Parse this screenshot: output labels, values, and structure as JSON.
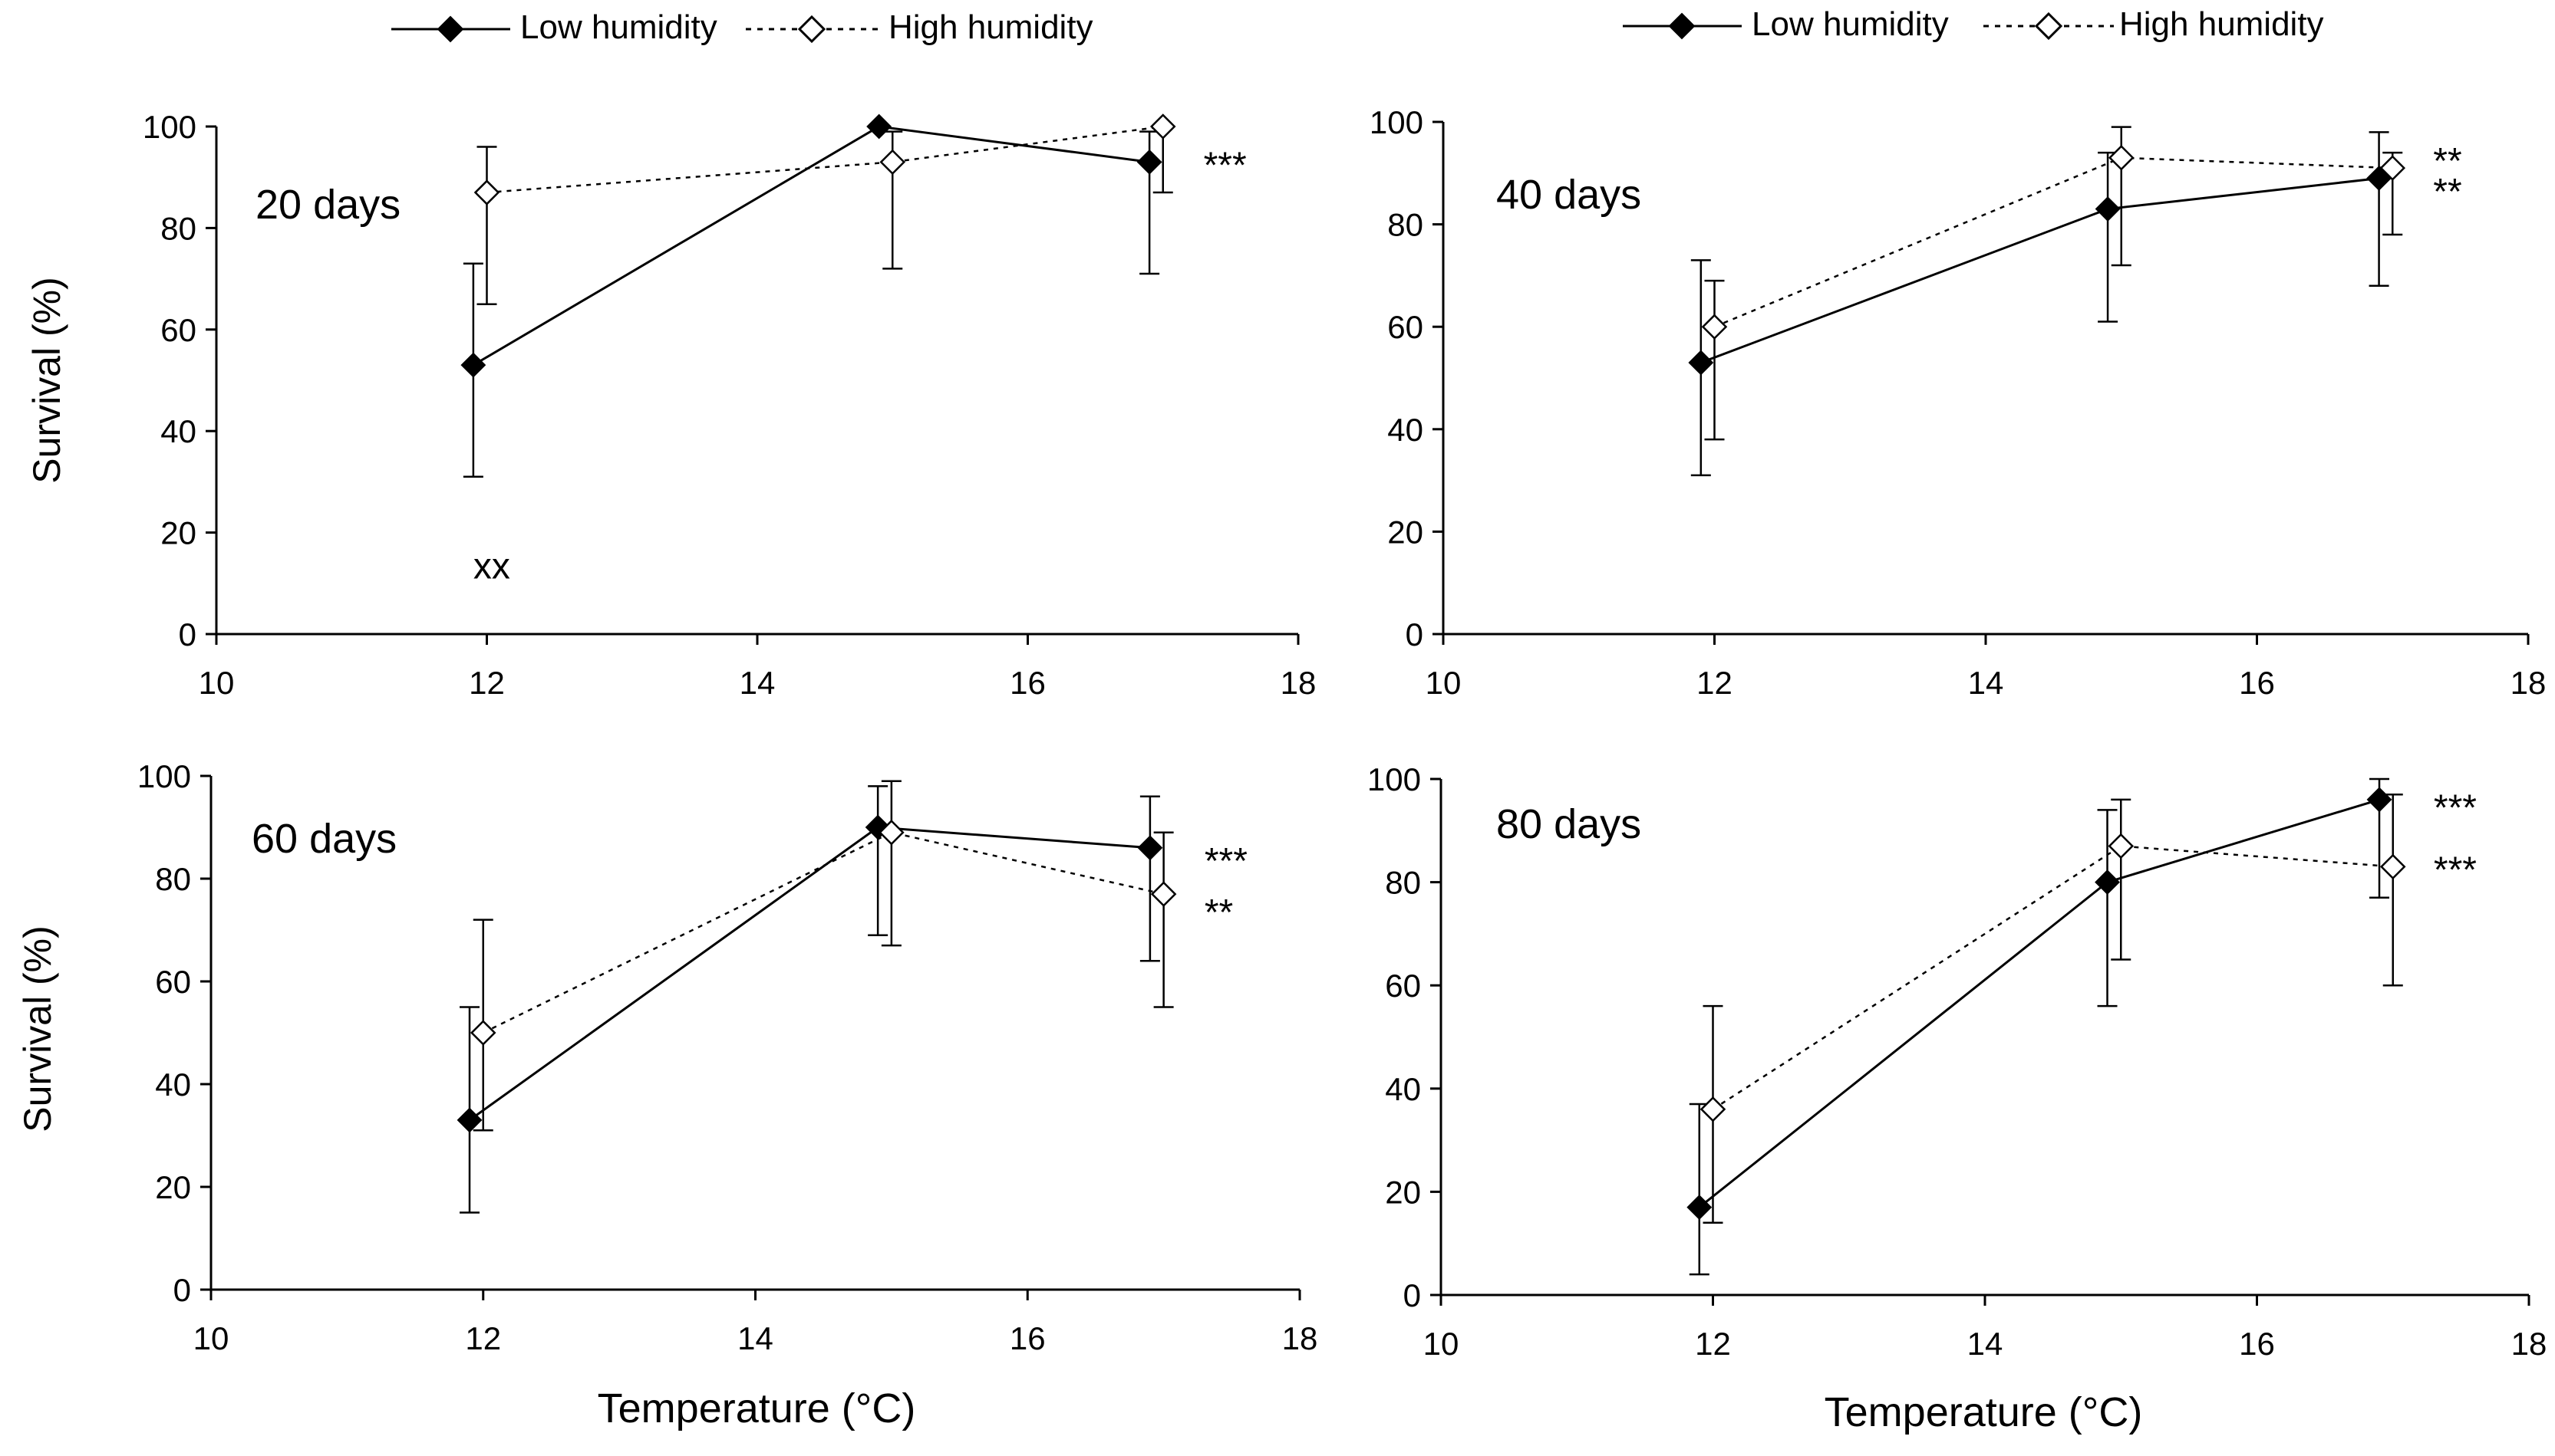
{
  "legend": {
    "low_label": "Low humidity",
    "high_label": "High humidity"
  },
  "axis": {
    "ylabel": "Survival (%)",
    "xlabel": "Temperature (°C)"
  },
  "chart_data": [
    {
      "type": "line",
      "title": "20 days",
      "xlim": [
        10,
        18
      ],
      "ylim": [
        0,
        100
      ],
      "xticks": [
        10,
        12,
        14,
        16,
        18
      ],
      "yticks": [
        0,
        20,
        40,
        60,
        80,
        100
      ],
      "xlabel": "",
      "ylabel": "Survival (%)",
      "series": [
        {
          "name": "Low humidity",
          "style": "solid",
          "marker": "filled-diamond",
          "x": [
            11.9,
            14.9,
            16.9
          ],
          "y": [
            53,
            100,
            93
          ],
          "err_low": [
            31,
            100,
            71
          ],
          "err_high": [
            73,
            100,
            99
          ]
        },
        {
          "name": "High humidity",
          "style": "dotted",
          "marker": "open-diamond",
          "x": [
            12.0,
            15.0,
            17.0
          ],
          "y": [
            87,
            93,
            100
          ],
          "err_low": [
            65,
            72,
            87
          ],
          "err_high": [
            96,
            99,
            100
          ]
        }
      ],
      "annotations": [
        {
          "text": "***",
          "x": 17.3,
          "y": 93
        },
        {
          "text": "xx",
          "x": 11.9,
          "y": 14
        }
      ]
    },
    {
      "type": "line",
      "title": "40 days",
      "xlim": [
        10,
        18
      ],
      "ylim": [
        0,
        100
      ],
      "xticks": [
        10,
        12,
        14,
        16,
        18
      ],
      "yticks": [
        0,
        20,
        40,
        60,
        80,
        100
      ],
      "xlabel": "",
      "ylabel": "",
      "series": [
        {
          "name": "Low humidity",
          "style": "solid",
          "marker": "filled-diamond",
          "x": [
            11.9,
            14.9,
            16.9
          ],
          "y": [
            53,
            83,
            89
          ],
          "err_low": [
            31,
            61,
            68
          ],
          "err_high": [
            73,
            94,
            98
          ]
        },
        {
          "name": "High humidity",
          "style": "dotted",
          "marker": "open-diamond",
          "x": [
            12.0,
            15.0,
            17.0
          ],
          "y": [
            60,
            93,
            91
          ],
          "err_low": [
            38,
            72,
            78
          ],
          "err_high": [
            69,
            99,
            94
          ]
        }
      ],
      "annotations": [
        {
          "text": "**",
          "x": 17.3,
          "y": 93
        },
        {
          "text": "**",
          "x": 17.3,
          "y": 87
        }
      ]
    },
    {
      "type": "line",
      "title": "60 days",
      "xlim": [
        10,
        18
      ],
      "ylim": [
        0,
        100
      ],
      "xticks": [
        10,
        12,
        14,
        16,
        18
      ],
      "yticks": [
        0,
        20,
        40,
        60,
        80,
        100
      ],
      "xlabel": "Temperature (°C)",
      "ylabel": "Survival (%)",
      "series": [
        {
          "name": "Low humidity",
          "style": "solid",
          "marker": "filled-diamond",
          "x": [
            11.9,
            14.9,
            16.9
          ],
          "y": [
            33,
            90,
            86
          ],
          "err_low": [
            15,
            69,
            64
          ],
          "err_high": [
            55,
            98,
            96
          ]
        },
        {
          "name": "High humidity",
          "style": "dotted",
          "marker": "open-diamond",
          "x": [
            12.0,
            15.0,
            17.0
          ],
          "y": [
            50,
            89,
            77
          ],
          "err_low": [
            31,
            67,
            55
          ],
          "err_high": [
            72,
            99,
            89
          ]
        }
      ],
      "annotations": [
        {
          "text": "***",
          "x": 17.3,
          "y": 84
        },
        {
          "text": "**",
          "x": 17.3,
          "y": 74
        }
      ]
    },
    {
      "type": "line",
      "title": "80 days",
      "xlim": [
        10,
        18
      ],
      "ylim": [
        0,
        100
      ],
      "xticks": [
        10,
        12,
        14,
        16,
        18
      ],
      "yticks": [
        0,
        20,
        40,
        60,
        80,
        100
      ],
      "xlabel": "Temperature (°C)",
      "ylabel": "",
      "series": [
        {
          "name": "Low humidity",
          "style": "solid",
          "marker": "filled-diamond",
          "x": [
            11.9,
            14.9,
            16.9
          ],
          "y": [
            17,
            80,
            96
          ],
          "err_low": [
            4,
            56,
            77
          ],
          "err_high": [
            37,
            94,
            100
          ]
        },
        {
          "name": "High humidity",
          "style": "dotted",
          "marker": "open-diamond",
          "x": [
            12.0,
            15.0,
            17.0
          ],
          "y": [
            36,
            87,
            83
          ],
          "err_low": [
            14,
            65,
            60
          ],
          "err_high": [
            56,
            96,
            97
          ]
        }
      ],
      "annotations": [
        {
          "text": "***",
          "x": 17.3,
          "y": 95
        },
        {
          "text": "***",
          "x": 17.3,
          "y": 83
        }
      ]
    }
  ]
}
